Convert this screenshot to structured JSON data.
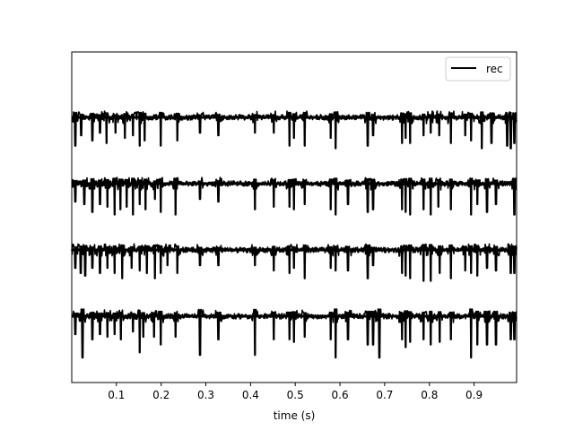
{
  "chart_data": {
    "type": "line",
    "title": "",
    "xlabel": "time (s)",
    "ylabel": "",
    "xlim": [
      0.0,
      0.995
    ],
    "xticks": [
      0.1,
      0.2,
      0.3,
      0.4,
      0.5,
      0.6,
      0.7,
      0.8,
      0.9
    ],
    "xtick_labels": [
      "0.1",
      "0.2",
      "0.3",
      "0.4",
      "0.5",
      "0.6",
      "0.7",
      "0.8",
      "0.9"
    ],
    "y_ticks_visible": false,
    "grid": false,
    "legend": {
      "entries": [
        "rec"
      ],
      "placement": "top-right"
    },
    "color": "#000000",
    "n_traces": 4,
    "note_values": "approximate spike times (s) read from the traces; deflections are mostly downward",
    "series": [
      {
        "spike_times": [
          0.008,
          0.021,
          0.046,
          0.063,
          0.078,
          0.098,
          0.119,
          0.137,
          0.152,
          0.163,
          0.199,
          0.236,
          0.287,
          0.328,
          0.41,
          0.452,
          0.487,
          0.497,
          0.521,
          0.579,
          0.59,
          0.662,
          0.674,
          0.739,
          0.747,
          0.757,
          0.787,
          0.803,
          0.822,
          0.848,
          0.88,
          0.893,
          0.917,
          0.939,
          0.974,
          0.982,
          0.99
        ],
        "spike_depth": [
          0.55,
          0.35,
          0.45,
          0.3,
          0.5,
          0.3,
          0.4,
          0.35,
          0.55,
          0.45,
          0.55,
          0.45,
          0.3,
          0.35,
          0.3,
          0.3,
          0.55,
          0.4,
          0.55,
          0.4,
          0.6,
          0.55,
          0.35,
          0.5,
          0.4,
          0.5,
          0.35,
          0.3,
          0.35,
          0.5,
          0.35,
          0.45,
          0.6,
          0.5,
          0.55,
          0.6,
          0.5
        ]
      },
      {
        "spike_times": [
          0.008,
          0.028,
          0.046,
          0.063,
          0.08,
          0.096,
          0.109,
          0.123,
          0.137,
          0.152,
          0.165,
          0.186,
          0.199,
          0.232,
          0.287,
          0.328,
          0.41,
          0.452,
          0.487,
          0.497,
          0.521,
          0.579,
          0.59,
          0.618,
          0.662,
          0.674,
          0.739,
          0.747,
          0.757,
          0.787,
          0.803,
          0.82,
          0.848,
          0.893,
          0.907,
          0.929,
          0.949,
          0.99
        ],
        "spike_depth": [
          0.35,
          0.4,
          0.55,
          0.4,
          0.45,
          0.6,
          0.5,
          0.45,
          0.6,
          0.4,
          0.5,
          0.3,
          0.55,
          0.6,
          0.3,
          0.35,
          0.5,
          0.45,
          0.45,
          0.5,
          0.4,
          0.5,
          0.6,
          0.4,
          0.55,
          0.5,
          0.5,
          0.55,
          0.6,
          0.5,
          0.6,
          0.45,
          0.5,
          0.6,
          0.4,
          0.55,
          0.4,
          0.6
        ]
      },
      {
        "spike_times": [
          0.008,
          0.02,
          0.03,
          0.046,
          0.063,
          0.08,
          0.096,
          0.113,
          0.134,
          0.152,
          0.168,
          0.186,
          0.199,
          0.214,
          0.236,
          0.287,
          0.328,
          0.41,
          0.452,
          0.487,
          0.497,
          0.521,
          0.579,
          0.59,
          0.618,
          0.662,
          0.674,
          0.739,
          0.747,
          0.757,
          0.787,
          0.803,
          0.823,
          0.848,
          0.88,
          0.893,
          0.907,
          0.929,
          0.949,
          0.982,
          0.99
        ],
        "spike_depth": [
          0.35,
          0.45,
          0.5,
          0.35,
          0.45,
          0.35,
          0.45,
          0.55,
          0.35,
          0.4,
          0.45,
          0.55,
          0.45,
          0.3,
          0.45,
          0.3,
          0.3,
          0.3,
          0.4,
          0.45,
          0.35,
          0.55,
          0.35,
          0.4,
          0.4,
          0.55,
          0.3,
          0.45,
          0.5,
          0.55,
          0.6,
          0.6,
          0.45,
          0.55,
          0.4,
          0.45,
          0.5,
          0.35,
          0.4,
          0.45,
          0.45
        ]
      },
      {
        "spike_times": [
          0.008,
          0.024,
          0.046,
          0.063,
          0.08,
          0.096,
          0.11,
          0.137,
          0.152,
          0.16,
          0.184,
          0.199,
          0.232,
          0.287,
          0.328,
          0.41,
          0.452,
          0.487,
          0.497,
          0.521,
          0.579,
          0.59,
          0.618,
          0.662,
          0.674,
          0.688,
          0.739,
          0.747,
          0.757,
          0.787,
          0.803,
          0.823,
          0.848,
          0.893,
          0.907,
          0.929,
          0.949,
          0.982,
          0.99
        ],
        "spike_depth": [
          0.35,
          0.8,
          0.45,
          0.35,
          0.4,
          0.35,
          0.45,
          0.3,
          0.7,
          0.4,
          0.4,
          0.55,
          0.4,
          0.75,
          0.45,
          0.75,
          0.45,
          0.45,
          0.5,
          0.4,
          0.45,
          0.8,
          0.45,
          0.55,
          0.55,
          0.8,
          0.45,
          0.6,
          0.5,
          0.45,
          0.55,
          0.5,
          0.45,
          0.8,
          0.55,
          0.55,
          0.55,
          0.45,
          0.45
        ]
      }
    ]
  }
}
